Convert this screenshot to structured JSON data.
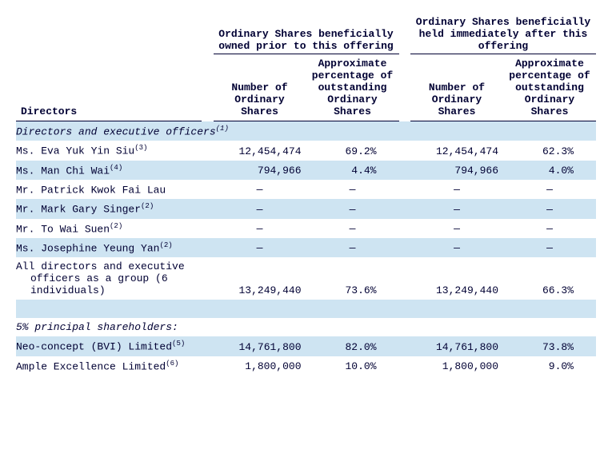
{
  "headers": {
    "group1": "Ordinary Shares beneficially owned prior to this offering",
    "group2": "Ordinary Shares beneficially held immediately after this offering",
    "col1": "Number of Ordinary Shares",
    "col2": "Approximate percentage of outstanding Ordinary Shares",
    "col3": "Number of Ordinary Shares",
    "col4": "Approximate percentage of outstanding Ordinary Shares",
    "directors_label": "Directors"
  },
  "sections": {
    "officers_title": "Directors and executive officers",
    "officers_sup": "(1)",
    "shareholders_title": "5% principal shareholders:"
  },
  "rows": {
    "r1": {
      "label": "Ms. Eva Yuk Yin Siu",
      "sup": "(3)",
      "n1": "12,454,474",
      "p1": "69.2%",
      "n2": "12,454,474",
      "p2": "62.3%"
    },
    "r2": {
      "label": "Ms. Man Chi Wai",
      "sup": "(4)",
      "n1": "794,966",
      "p1": "4.4%",
      "n2": "794,966",
      "p2": "4.0%"
    },
    "r3": {
      "label": "Mr. Patrick Kwok Fai Lau",
      "sup": "",
      "n1": "—",
      "p1": "—",
      "n2": "—",
      "p2": "—"
    },
    "r4": {
      "label": "Mr. Mark Gary Singer",
      "sup": "(2)",
      "n1": "—",
      "p1": "—",
      "n2": "—",
      "p2": "—"
    },
    "r5": {
      "label": "Mr. To Wai Suen",
      "sup": "(2)",
      "n1": "—",
      "p1": "—",
      "n2": "—",
      "p2": "—"
    },
    "r6": {
      "label": "Ms. Josephine Yeung Yan",
      "sup": "(2)",
      "n1": "—",
      "p1": "—",
      "n2": "—",
      "p2": "—"
    },
    "r7": {
      "label": "All directors and executive officers as a group (6 individuals)",
      "sup": "",
      "n1": "13,249,440",
      "p1": "73.6%",
      "n2": "13,249,440",
      "p2": "66.3%"
    },
    "s1": {
      "label": "Neo-concept (BVI) Limited",
      "sup": "(5)",
      "n1": "14,761,800",
      "p1": "82.0%",
      "n2": "14,761,800",
      "p2": "73.8%"
    },
    "s2": {
      "label": "Ample Excellence Limited",
      "sup": "(6)",
      "n1": "1,800,000",
      "p1": "10.0%",
      "n2": "1,800,000",
      "p2": "9.0%"
    }
  },
  "style": {
    "shade_color": "#cee4f2",
    "text_color": "#000033",
    "bg_color": "#ffffff",
    "font_family": "Courier New",
    "font_size_pt": 10
  }
}
